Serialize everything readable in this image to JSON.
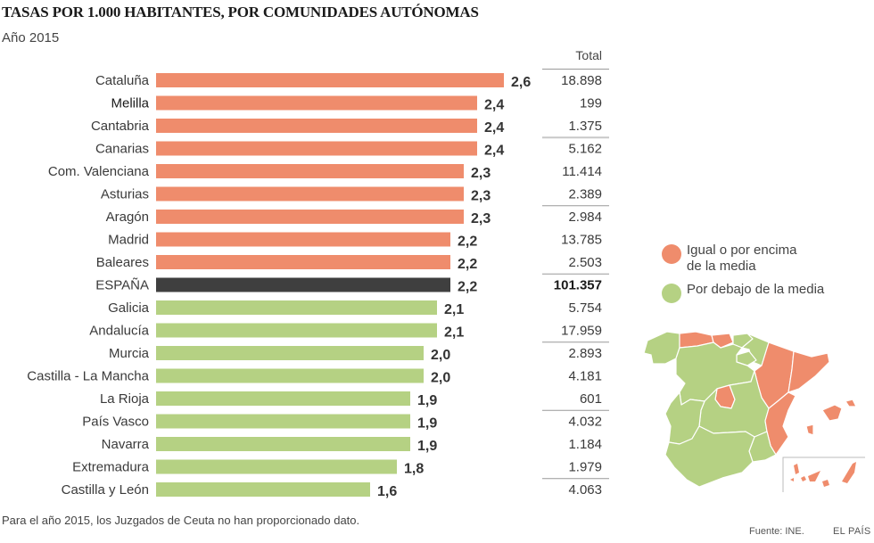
{
  "header": {
    "title": "TASAS POR 1.000 HABITANTES, POR COMUNIDADES AUTÓNOMAS",
    "subtitle": "Año 2015"
  },
  "colors": {
    "above": "#ef8c6c",
    "below": "#b5d183",
    "national": "#3f3f3f",
    "rule": "#999999",
    "rule_light": "#c8c8c8"
  },
  "legend": {
    "items": [
      {
        "label": "Igual o por encima de la media",
        "line1": "Igual o por encima",
        "line2": "de la media",
        "group": "above"
      },
      {
        "label": "Por debajo de la media",
        "line1": "Por debajo de la media",
        "line2": "",
        "group": "below"
      }
    ]
  },
  "footer": {
    "note": "Para el año 2015, los Juzgados de Ceuta no han proporcionado dato.",
    "source": "Fuente: INE.",
    "brand": "EL PAÍS"
  },
  "chart_data": {
    "type": "bar",
    "orientation": "horizontal",
    "title": "TASAS POR 1.000 HABITANTES, POR COMUNIDADES AUTÓNOMAS",
    "subtitle": "Año 2015",
    "xlabel": "",
    "ylabel": "",
    "xlim": [
      0,
      2.6
    ],
    "grid": false,
    "table_header": "Total",
    "categories": [
      "Cataluña",
      "Melilla",
      "Cantabria",
      "Canarias",
      "Com. Valenciana",
      "Asturias",
      "Aragón",
      "Madrid",
      "Baleares",
      "ESPAÑA",
      "Galicia",
      "Andalucía",
      "Murcia",
      "Castilla - La Mancha",
      "La Rioja",
      "País Vasco",
      "Navarra",
      "Extremadura",
      "Castilla y León"
    ],
    "values": [
      2.6,
      2.4,
      2.4,
      2.4,
      2.3,
      2.3,
      2.3,
      2.2,
      2.2,
      2.2,
      2.1,
      2.1,
      2.0,
      2.0,
      1.9,
      1.9,
      1.9,
      1.8,
      1.6
    ],
    "value_labels": [
      "2,6",
      "2,4",
      "2,4",
      "2,4",
      "2,3",
      "2,3",
      "2,3",
      "2,2",
      "2,2",
      "2,2",
      "2,1",
      "2,1",
      "2,0",
      "2,0",
      "1,9",
      "1,9",
      "1,9",
      "1,8",
      "1,6"
    ],
    "groups": [
      "above",
      "above",
      "above",
      "above",
      "above",
      "above",
      "above",
      "above",
      "above",
      "national",
      "below",
      "below",
      "below",
      "below",
      "below",
      "below",
      "below",
      "below",
      "below"
    ],
    "totals": [
      "18.898",
      "199",
      "1.375",
      "5.162",
      "11.414",
      "2.389",
      "2.984",
      "13.785",
      "2.503",
      "101.357",
      "5.754",
      "17.959",
      "2.893",
      "4.181",
      "601",
      "4.032",
      "1.184",
      "1.979",
      "4.063"
    ],
    "legend_position": "right"
  }
}
